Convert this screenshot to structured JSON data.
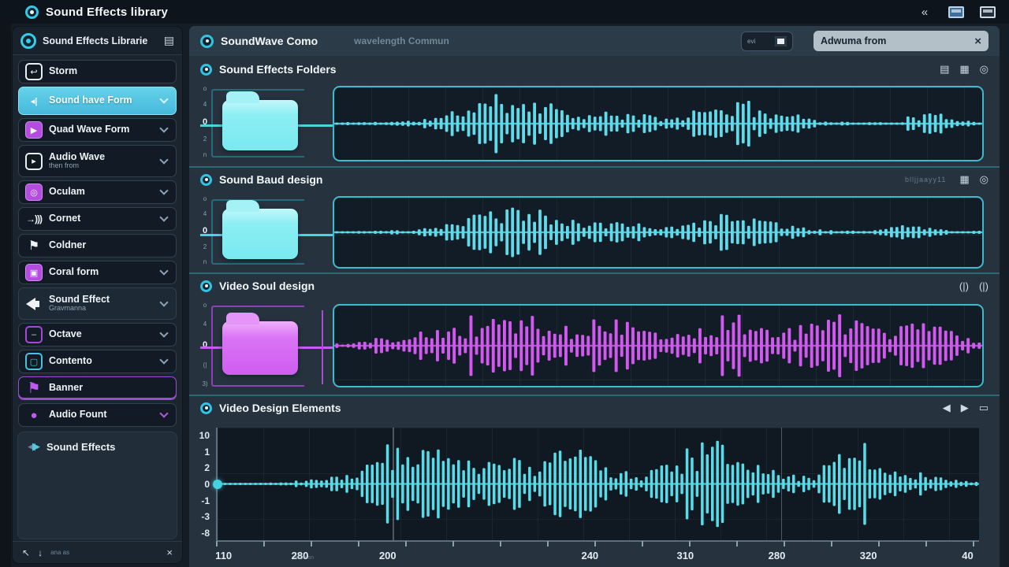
{
  "app": {
    "title": "Sound Effects library"
  },
  "topbar": {
    "collapse_glyph": "«"
  },
  "sidebar": {
    "header": {
      "title": "Sound Effects Librarie",
      "menu_glyph": "▤"
    },
    "items": [
      {
        "label": "Storm",
        "glyph": "↩"
      },
      {
        "label": "Sound have Form",
        "glyph": "◂|"
      },
      {
        "label": "Quad Wave Form",
        "glyph": "▶"
      },
      {
        "label": "Audio Wave",
        "sub": "then from",
        "glyph": "▸"
      },
      {
        "label": "Oculam",
        "glyph": "◎"
      },
      {
        "label": "Cornet",
        "glyph": "→)))"
      },
      {
        "label": "Coldner",
        "glyph": "⚑"
      },
      {
        "label": "Coral form",
        "glyph": "▣"
      },
      {
        "label": "Sound Effect",
        "sub": "Gravmanna",
        "glyph": ""
      },
      {
        "label": "Octave",
        "glyph": "–"
      },
      {
        "label": "Contento",
        "glyph": "▢"
      },
      {
        "label": "Banner",
        "glyph": "⚑"
      },
      {
        "label": "Audio Fount",
        "glyph": "●"
      }
    ],
    "footer_link": {
      "label": "Sound Effects"
    },
    "statusbar": {
      "hint": "ana as",
      "back_glyph": "↖",
      "down_glyph": "↓",
      "close_glyph": "×"
    }
  },
  "main": {
    "header": {
      "title": "SoundWave Como",
      "subtitle": "wavelength Commun",
      "toggle_label": "evi",
      "search_value": "Adwuma from",
      "clear_glyph": "×"
    },
    "sections": [
      {
        "title": "Sound Effects Folders"
      },
      {
        "title": "Sound Baud design",
        "meta": "blljjaayy11"
      },
      {
        "title": "Video Soul design",
        "volume_glyph": "(|)"
      },
      {
        "title": "Video Design Elements"
      }
    ]
  },
  "rulers": {
    "s1": [
      "o",
      "4",
      "0",
      "2",
      "n"
    ],
    "s3": [
      "o",
      "4",
      "0",
      "(|",
      "3)"
    ]
  },
  "waves": {
    "s1": {
      "color": "#5edcec",
      "seed": 11,
      "bars": 118,
      "envelope": [
        0.05,
        0.06,
        0.08,
        0.12,
        0.3,
        0.75,
        1.0,
        0.9,
        0.6,
        0.32,
        0.35,
        0.3,
        0.18,
        0.45,
        0.7,
        0.6,
        0.4,
        0.18,
        0.07,
        0.05,
        0.06,
        0.35,
        0.22,
        0.07
      ]
    },
    "s2": {
      "color": "#5edcec",
      "seed": 23,
      "bars": 118,
      "envelope": [
        0.04,
        0.05,
        0.07,
        0.1,
        0.25,
        0.65,
        1.0,
        0.85,
        0.5,
        0.3,
        0.42,
        0.35,
        0.22,
        0.5,
        0.68,
        0.5,
        0.3,
        0.12,
        0.06,
        0.05,
        0.28,
        0.18,
        0.06,
        0.05
      ]
    },
    "s3": {
      "color": "#d358f2",
      "seed": 37,
      "bars": 116,
      "envelope": [
        0.08,
        0.15,
        0.25,
        0.4,
        0.5,
        0.75,
        0.95,
        0.8,
        0.55,
        0.7,
        0.9,
        0.65,
        0.5,
        0.6,
        0.85,
        0.6,
        0.45,
        0.65,
        0.9,
        0.75,
        0.55,
        0.65,
        0.45,
        0.18
      ]
    },
    "s4": {
      "color": "#56dde9",
      "seed": 51,
      "bars": 150,
      "envelope": [
        0.02,
        0.02,
        0.03,
        0.08,
        0.15,
        0.3,
        0.85,
        1.0,
        0.65,
        0.5,
        0.55,
        0.45,
        0.7,
        0.75,
        0.3,
        0.15,
        0.45,
        0.8,
        0.85,
        0.6,
        0.25,
        0.15,
        0.6,
        0.9,
        0.4,
        0.2,
        0.12,
        0.05
      ]
    }
  },
  "chart_data": {
    "type": "line",
    "title": "Video Design Elements",
    "xlabel": "",
    "ylabel": "",
    "y_ticks": [
      "10",
      "1",
      "2",
      "0",
      "-1",
      "-3",
      "-8"
    ],
    "x_ticks": [
      {
        "label": "110",
        "p": 1
      },
      {
        "label": "280",
        "p": 11
      },
      {
        "label": "200",
        "p": 22.5
      },
      {
        "label": "240",
        "p": 49
      },
      {
        "label": "310",
        "p": 61.5
      },
      {
        "label": "280",
        "p": 73.5
      },
      {
        "label": "320",
        "p": 85.5
      },
      {
        "label": "40",
        "p": 98.5
      }
    ],
    "x_note": "assu on",
    "description": "audio waveform amplitude vs time, cyan trace with start marker dot"
  }
}
